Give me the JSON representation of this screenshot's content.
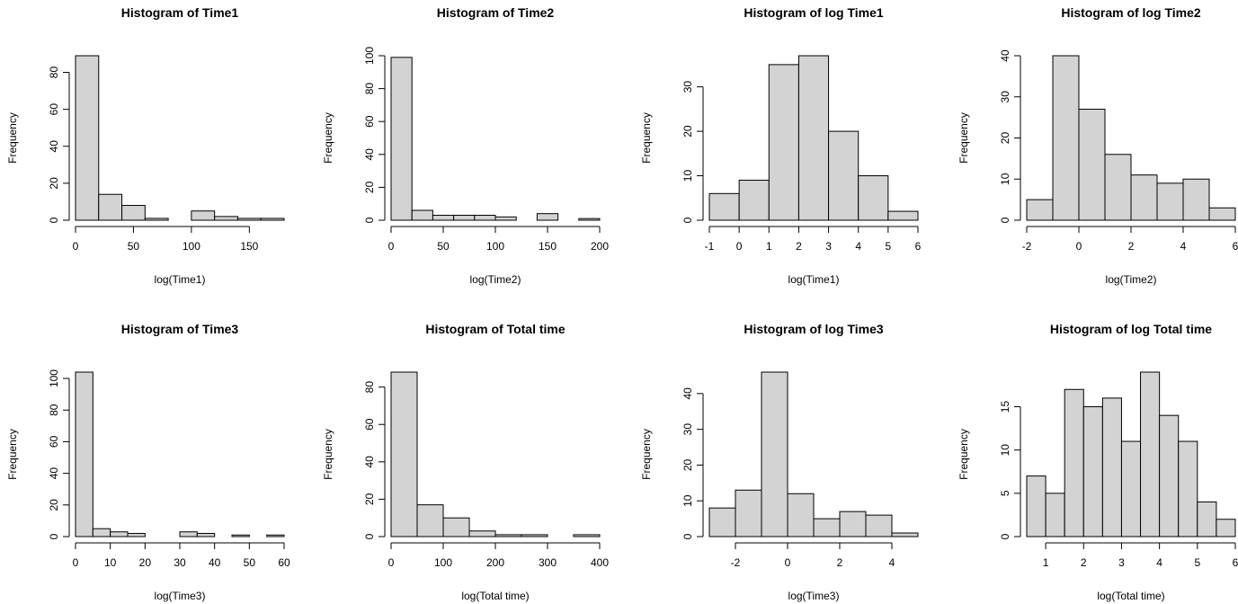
{
  "colors": {
    "bar_fill": "#d3d3d3",
    "bar_stroke": "#000000",
    "background": "#ffffff"
  },
  "chart_data": [
    {
      "type": "bar",
      "title": "Histogram of Time1",
      "xlabel": "log(Time1)",
      "ylabel": "Frequency",
      "breaks": [
        0,
        20,
        40,
        60,
        80,
        100,
        120,
        140,
        160,
        180
      ],
      "values": [
        89,
        14,
        8,
        1,
        0,
        5,
        2,
        1,
        1
      ],
      "xlim": [
        0,
        180
      ],
      "ylim": [
        0,
        89
      ],
      "xticks": [
        0,
        50,
        100,
        150
      ],
      "yticks": [
        0,
        20,
        40,
        60,
        80
      ],
      "grid": false
    },
    {
      "type": "bar",
      "title": "Histogram of Time2",
      "xlabel": "log(Time2)",
      "ylabel": "Frequency",
      "breaks": [
        0,
        20,
        40,
        60,
        80,
        100,
        120,
        140,
        160,
        180,
        200
      ],
      "values": [
        99,
        6,
        3,
        3,
        3,
        2,
        0,
        4,
        0,
        1
      ],
      "xlim": [
        0,
        200
      ],
      "ylim": [
        0,
        100
      ],
      "xticks": [
        0,
        50,
        100,
        150,
        200
      ],
      "yticks": [
        0,
        20,
        40,
        60,
        80,
        100
      ],
      "grid": false
    },
    {
      "type": "bar",
      "title": "Histogram of log Time1",
      "xlabel": "log(Time1)",
      "ylabel": "Frequency",
      "breaks": [
        -1,
        0,
        1,
        2,
        3,
        4,
        5,
        6
      ],
      "values": [
        6,
        9,
        35,
        37,
        20,
        10,
        2
      ],
      "xlim": [
        -1,
        6
      ],
      "ylim": [
        0,
        37
      ],
      "xticks": [
        -1,
        0,
        1,
        2,
        3,
        4,
        5,
        6
      ],
      "yticks": [
        0,
        10,
        20,
        30
      ],
      "grid": false
    },
    {
      "type": "bar",
      "title": "Histogram of log Time2",
      "xlabel": "log(Time2)",
      "ylabel": "Frequency",
      "breaks": [
        -2,
        -1,
        0,
        1,
        2,
        3,
        4,
        5,
        6
      ],
      "values": [
        5,
        40,
        27,
        16,
        11,
        9,
        10,
        3
      ],
      "xlim": [
        -2,
        6
      ],
      "ylim": [
        0,
        40
      ],
      "xticks": [
        -2,
        0,
        2,
        4,
        6
      ],
      "yticks": [
        0,
        10,
        20,
        30,
        40
      ],
      "grid": false
    },
    {
      "type": "bar",
      "title": "Histogram of Time3",
      "xlabel": "log(Time3)",
      "ylabel": "Frequency",
      "breaks": [
        0,
        5,
        10,
        15,
        20,
        25,
        30,
        35,
        40,
        45,
        50,
        55,
        60
      ],
      "values": [
        104,
        5,
        3,
        2,
        0,
        0,
        3,
        2,
        0,
        1,
        0,
        1
      ],
      "xlim": [
        0,
        60
      ],
      "ylim": [
        0,
        104
      ],
      "xticks": [
        0,
        10,
        20,
        30,
        40,
        50,
        60
      ],
      "yticks": [
        0,
        20,
        40,
        60,
        80,
        100
      ],
      "grid": false
    },
    {
      "type": "bar",
      "title": "Histogram of Total time",
      "xlabel": "log(Total time)",
      "ylabel": "Frequency",
      "breaks": [
        0,
        50,
        100,
        150,
        200,
        250,
        300,
        350,
        400
      ],
      "values": [
        88,
        17,
        10,
        3,
        1,
        1,
        0,
        1
      ],
      "xlim": [
        0,
        400
      ],
      "ylim": [
        0,
        88
      ],
      "xticks": [
        0,
        100,
        200,
        300,
        400
      ],
      "yticks": [
        0,
        20,
        40,
        60,
        80
      ],
      "grid": false
    },
    {
      "type": "bar",
      "title": "Histogram of log Time3",
      "xlabel": "log(Time3)",
      "ylabel": "Frequency",
      "breaks": [
        -3,
        -2,
        -1,
        0,
        1,
        2,
        3,
        4,
        5
      ],
      "values": [
        8,
        13,
        46,
        12,
        5,
        7,
        6,
        1
      ],
      "xlim": [
        -3,
        5
      ],
      "ylim": [
        0,
        46
      ],
      "xticks": [
        -2,
        0,
        2,
        4
      ],
      "yticks": [
        0,
        10,
        20,
        30,
        40
      ],
      "grid": false
    },
    {
      "type": "bar",
      "title": "Histogram of log Total time",
      "xlabel": "log(Total time)",
      "ylabel": "Frequency",
      "breaks": [
        0.5,
        1,
        1.5,
        2,
        2.5,
        3,
        3.5,
        4,
        4.5,
        5,
        5.5,
        6
      ],
      "values": [
        7,
        5,
        17,
        15,
        16,
        11,
        19,
        14,
        11,
        4,
        2
      ],
      "xlim": [
        0.5,
        6
      ],
      "ylim": [
        0,
        19
      ],
      "xticks": [
        1,
        2,
        3,
        4,
        5,
        6
      ],
      "yticks": [
        0,
        5,
        10,
        15
      ],
      "grid": false
    }
  ]
}
